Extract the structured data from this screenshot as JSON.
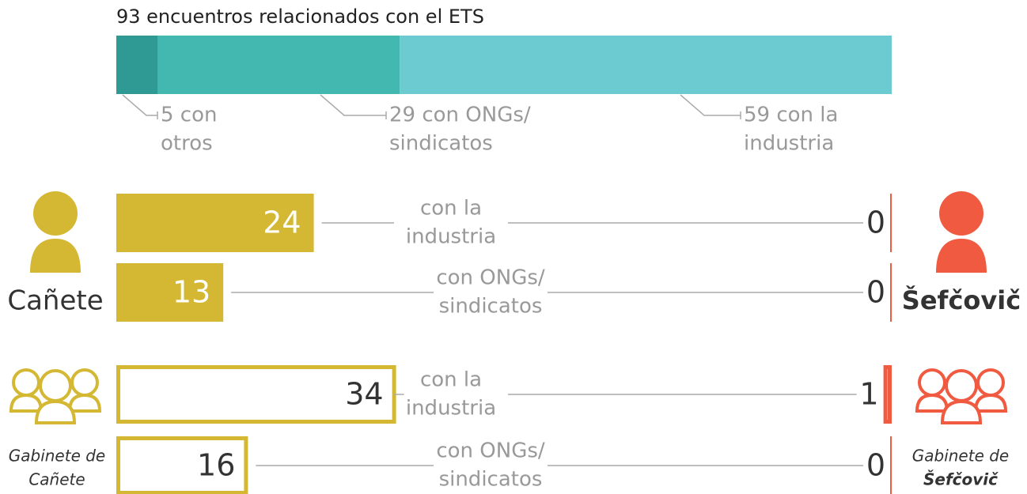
{
  "summary": {
    "title": "93 encuentros relacionados con el ETS",
    "total": 93,
    "segments": [
      {
        "value": 5,
        "label": [
          "5 con",
          "otros"
        ],
        "color": "#2e9a93"
      },
      {
        "value": 29,
        "label": [
          "29 con ONGs/",
          "sindicatos"
        ],
        "color": "#42b8b1"
      },
      {
        "value": 59,
        "label": [
          "59 con la",
          "industria"
        ],
        "color": "#6ccbd0"
      }
    ]
  },
  "groups": [
    {
      "left": [
        "Cañete"
      ],
      "right": [
        "Šefčovič"
      ],
      "style": "filled",
      "left_color": "#d4b833",
      "right_color": "#f05a40",
      "rows": [
        {
          "category": [
            "con la",
            "industria"
          ],
          "left": 24,
          "right": 0
        },
        {
          "category": [
            "con ONGs/",
            "sindicatos"
          ],
          "left": 13,
          "right": 0
        }
      ]
    },
    {
      "left": [
        "Gabinete de",
        "Cañete"
      ],
      "right": [
        "Gabinete de",
        "Šefčovič"
      ],
      "style": "outline",
      "left_color": "#d4b833",
      "right_color": "#f05a40",
      "rows": [
        {
          "category": [
            "con la",
            "industria"
          ],
          "left": 34,
          "right": 1
        },
        {
          "category": [
            "con ONGs/",
            "sindicatos"
          ],
          "left": 16,
          "right": 0
        }
      ]
    }
  ]
}
